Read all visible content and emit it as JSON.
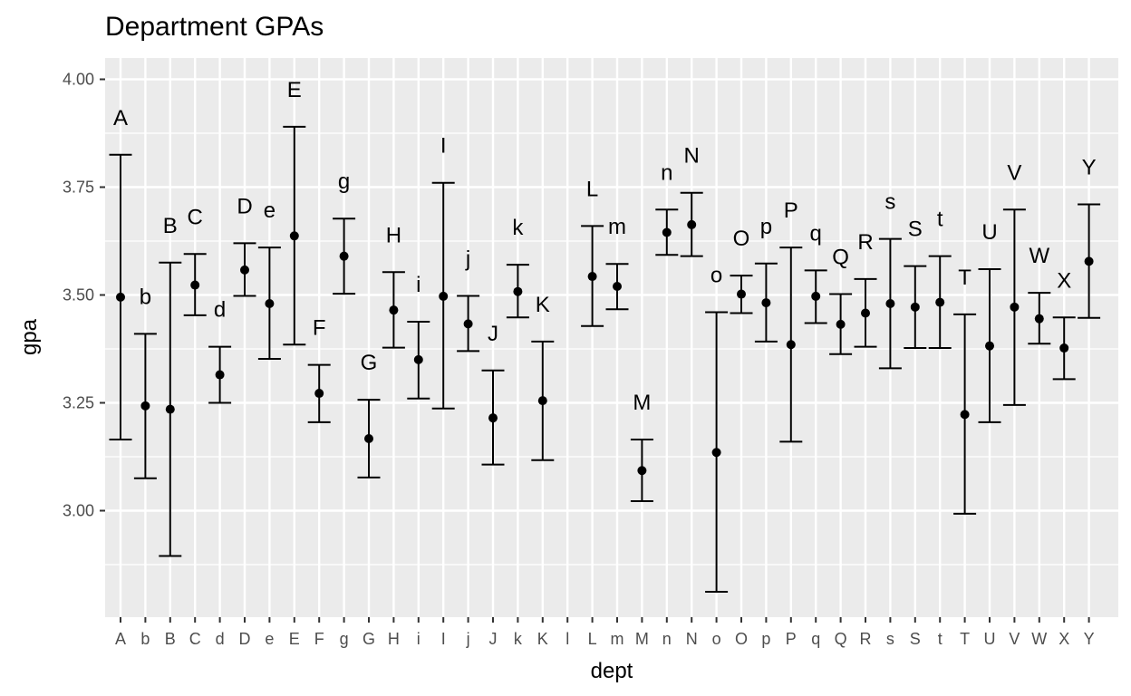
{
  "chart_data": {
    "type": "errorbar",
    "title": "Department GPAs",
    "xlabel": "dept",
    "ylabel": "gpa",
    "ylim": [
      2.8,
      4.05
    ],
    "yticks": [
      3.0,
      3.25,
      3.5,
      3.75,
      4.0
    ],
    "ytick_labels": [
      "3.00",
      "3.25",
      "3.50",
      "3.75",
      "4.00"
    ],
    "grid": true,
    "legend": "none",
    "colors": {
      "panel": "#ebebeb",
      "grid": "#ffffff",
      "ink": "#000000",
      "tick_text": "#4d4d4d",
      "tick_mark": "#333333"
    },
    "categories": [
      "A",
      "b",
      "B",
      "C",
      "d",
      "D",
      "e",
      "E",
      "F",
      "g",
      "G",
      "H",
      "i",
      "I",
      "j",
      "J",
      "k",
      "K",
      "l",
      "L",
      "m",
      "M",
      "n",
      "N",
      "o",
      "O",
      "p",
      "P",
      "q",
      "Q",
      "R",
      "s",
      "S",
      "t",
      "T",
      "U",
      "V",
      "W",
      "X",
      "Y"
    ],
    "points": [
      {
        "dept": "A",
        "mean": 3.495,
        "low": 3.165,
        "high": 3.825,
        "label": "A"
      },
      {
        "dept": "b",
        "mean": 3.243,
        "low": 3.075,
        "high": 3.41,
        "label": "b"
      },
      {
        "dept": "B",
        "mean": 3.235,
        "low": 2.895,
        "high": 3.575,
        "label": "B"
      },
      {
        "dept": "C",
        "mean": 3.523,
        "low": 3.453,
        "high": 3.595,
        "label": "C"
      },
      {
        "dept": "d",
        "mean": 3.315,
        "low": 3.25,
        "high": 3.38,
        "label": "d"
      },
      {
        "dept": "D",
        "mean": 3.558,
        "low": 3.498,
        "high": 3.62,
        "label": "D"
      },
      {
        "dept": "e",
        "mean": 3.48,
        "low": 3.352,
        "high": 3.61,
        "label": "e"
      },
      {
        "dept": "E",
        "mean": 3.637,
        "low": 3.385,
        "high": 3.89,
        "label": "E"
      },
      {
        "dept": "F",
        "mean": 3.272,
        "low": 3.205,
        "high": 3.338,
        "label": "F"
      },
      {
        "dept": "g",
        "mean": 3.59,
        "low": 3.503,
        "high": 3.677,
        "label": "g"
      },
      {
        "dept": "G",
        "mean": 3.167,
        "low": 3.077,
        "high": 3.257,
        "label": "G"
      },
      {
        "dept": "H",
        "mean": 3.465,
        "low": 3.378,
        "high": 3.553,
        "label": "H"
      },
      {
        "dept": "i",
        "mean": 3.35,
        "low": 3.26,
        "high": 3.438,
        "label": "i"
      },
      {
        "dept": "I",
        "mean": 3.497,
        "low": 3.237,
        "high": 3.76,
        "label": "I"
      },
      {
        "dept": "j",
        "mean": 3.433,
        "low": 3.37,
        "high": 3.498,
        "label": "j"
      },
      {
        "dept": "J",
        "mean": 3.215,
        "low": 3.107,
        "high": 3.325,
        "label": "J"
      },
      {
        "dept": "k",
        "mean": 3.508,
        "low": 3.448,
        "high": 3.57,
        "label": "k"
      },
      {
        "dept": "K",
        "mean": 3.255,
        "low": 3.117,
        "high": 3.392,
        "label": "K"
      },
      {
        "dept": "l",
        "mean": null,
        "low": null,
        "high": null,
        "label": ""
      },
      {
        "dept": "L",
        "mean": 3.543,
        "low": 3.428,
        "high": 3.66,
        "label": "L"
      },
      {
        "dept": "m",
        "mean": 3.52,
        "low": 3.467,
        "high": 3.572,
        "label": "m"
      },
      {
        "dept": "M",
        "mean": 3.093,
        "low": 3.022,
        "high": 3.165,
        "label": "M"
      },
      {
        "dept": "n",
        "mean": 3.645,
        "low": 3.593,
        "high": 3.698,
        "label": "n"
      },
      {
        "dept": "N",
        "mean": 3.663,
        "low": 3.59,
        "high": 3.737,
        "label": "N"
      },
      {
        "dept": "o",
        "mean": 3.135,
        "low": 2.812,
        "high": 3.46,
        "label": "o"
      },
      {
        "dept": "O",
        "mean": 3.502,
        "low": 3.458,
        "high": 3.545,
        "label": "O"
      },
      {
        "dept": "p",
        "mean": 3.482,
        "low": 3.392,
        "high": 3.573,
        "label": "p"
      },
      {
        "dept": "P",
        "mean": 3.385,
        "low": 3.16,
        "high": 3.61,
        "label": "P"
      },
      {
        "dept": "q",
        "mean": 3.497,
        "low": 3.435,
        "high": 3.557,
        "label": "q"
      },
      {
        "dept": "Q",
        "mean": 3.432,
        "low": 3.363,
        "high": 3.502,
        "label": "Q"
      },
      {
        "dept": "R",
        "mean": 3.458,
        "low": 3.38,
        "high": 3.537,
        "label": "R"
      },
      {
        "dept": "s",
        "mean": 3.48,
        "low": 3.33,
        "high": 3.63,
        "label": "s"
      },
      {
        "dept": "S",
        "mean": 3.472,
        "low": 3.377,
        "high": 3.567,
        "label": "S"
      },
      {
        "dept": "t",
        "mean": 3.483,
        "low": 3.377,
        "high": 3.59,
        "label": "t"
      },
      {
        "dept": "T",
        "mean": 3.223,
        "low": 2.993,
        "high": 3.455,
        "label": "T"
      },
      {
        "dept": "U",
        "mean": 3.382,
        "low": 3.205,
        "high": 3.56,
        "label": "U"
      },
      {
        "dept": "V",
        "mean": 3.472,
        "low": 3.245,
        "high": 3.698,
        "label": "V"
      },
      {
        "dept": "W",
        "mean": 3.445,
        "low": 3.387,
        "high": 3.505,
        "label": "W"
      },
      {
        "dept": "X",
        "mean": 3.377,
        "low": 3.305,
        "high": 3.448,
        "label": "X"
      },
      {
        "dept": "Y",
        "mean": 3.578,
        "low": 3.447,
        "high": 3.71,
        "label": "Y"
      }
    ]
  }
}
